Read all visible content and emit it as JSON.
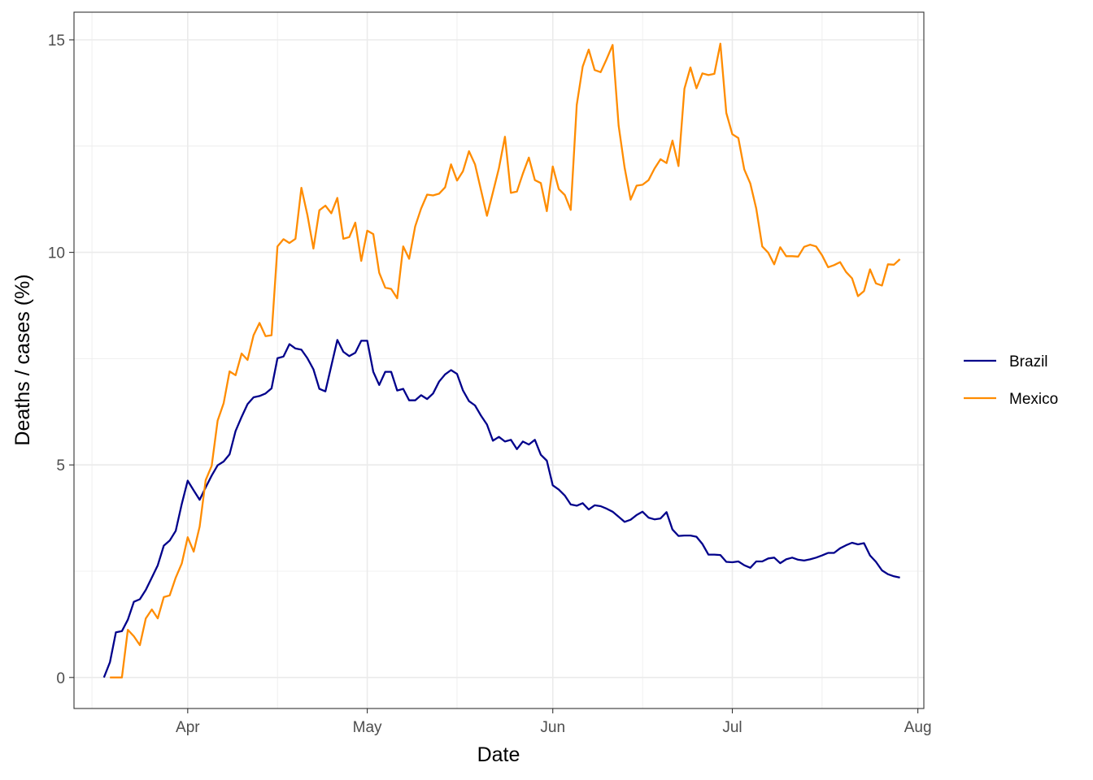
{
  "chart_data": {
    "type": "line",
    "xlabel": "Date",
    "ylabel": "Deaths / cases (%)",
    "xlim": [
      "2020-03-13",
      "2020-08-02"
    ],
    "ylim": [
      -0.73,
      15.65
    ],
    "x_ticks": [
      {
        "date": "2020-04-01",
        "label": "Apr"
      },
      {
        "date": "2020-05-01",
        "label": "May"
      },
      {
        "date": "2020-06-01",
        "label": "Jun"
      },
      {
        "date": "2020-07-01",
        "label": "Jul"
      },
      {
        "date": "2020-08-01",
        "label": "Aug"
      }
    ],
    "x_minor_ticks": [
      "2020-03-16",
      "2020-04-16",
      "2020-05-16",
      "2020-06-16",
      "2020-07-16"
    ],
    "y_ticks": [
      {
        "value": 0,
        "label": "0"
      },
      {
        "value": 5,
        "label": "5"
      },
      {
        "value": 10,
        "label": "10"
      },
      {
        "value": 15,
        "label": "15"
      }
    ],
    "y_minor_ticks": [
      2.5,
      7.5,
      12.5
    ],
    "grid": true,
    "legend_position": "right",
    "series": [
      {
        "name": "Brazil",
        "color": "#00008b",
        "start_date": "2020-03-18",
        "values": [
          0.0,
          0.36,
          1.06,
          1.09,
          1.36,
          1.78,
          1.84,
          2.06,
          2.35,
          2.64,
          3.1,
          3.22,
          3.45,
          4.08,
          4.63,
          4.4,
          4.18,
          4.47,
          4.75,
          4.99,
          5.08,
          5.25,
          5.8,
          6.13,
          6.43,
          6.59,
          6.62,
          6.68,
          6.8,
          7.51,
          7.55,
          7.84,
          7.74,
          7.71,
          7.51,
          7.25,
          6.79,
          6.73,
          7.33,
          7.94,
          7.66,
          7.56,
          7.64,
          7.92,
          7.92,
          7.19,
          6.88,
          7.19,
          7.19,
          6.75,
          6.79,
          6.52,
          6.52,
          6.64,
          6.55,
          6.68,
          6.96,
          7.13,
          7.23,
          7.14,
          6.75,
          6.5,
          6.4,
          6.16,
          5.95,
          5.57,
          5.66,
          5.55,
          5.59,
          5.37,
          5.55,
          5.48,
          5.59,
          5.24,
          5.1,
          4.52,
          4.42,
          4.28,
          4.07,
          4.04,
          4.1,
          3.95,
          4.05,
          4.03,
          3.97,
          3.9,
          3.78,
          3.66,
          3.71,
          3.82,
          3.9,
          3.76,
          3.72,
          3.74,
          3.89,
          3.48,
          3.33,
          3.34,
          3.34,
          3.31,
          3.14,
          2.89,
          2.89,
          2.88,
          2.72,
          2.71,
          2.73,
          2.64,
          2.58,
          2.73,
          2.73,
          2.8,
          2.82,
          2.69,
          2.78,
          2.82,
          2.77,
          2.75,
          2.78,
          2.82,
          2.87,
          2.93,
          2.93,
          3.04,
          3.11,
          3.17,
          3.13,
          3.16,
          2.87,
          2.72,
          2.52,
          2.43,
          2.38,
          2.35
        ]
      },
      {
        "name": "Mexico",
        "color": "#ff8c00",
        "start_date": "2020-03-19",
        "values": [
          0.0,
          0.0,
          0.0,
          1.12,
          0.97,
          0.76,
          1.39,
          1.6,
          1.39,
          1.89,
          1.93,
          2.35,
          2.68,
          3.3,
          2.96,
          3.55,
          4.64,
          4.98,
          6.04,
          6.45,
          7.2,
          7.11,
          7.62,
          7.47,
          8.05,
          8.34,
          8.03,
          8.05,
          10.14,
          10.31,
          10.22,
          10.32,
          11.52,
          10.88,
          10.09,
          10.99,
          11.1,
          10.92,
          11.28,
          10.32,
          10.36,
          10.7,
          9.8,
          10.51,
          10.43,
          9.52,
          9.17,
          9.14,
          8.92,
          10.14,
          9.85,
          10.61,
          11.03,
          11.36,
          11.34,
          11.38,
          11.53,
          12.07,
          11.69,
          11.91,
          12.38,
          12.07,
          11.47,
          10.86,
          11.41,
          11.98,
          12.72,
          11.4,
          11.43,
          11.85,
          12.23,
          11.7,
          11.63,
          10.97,
          12.02,
          11.49,
          11.35,
          11.0,
          13.47,
          14.37,
          14.77,
          14.29,
          14.24,
          14.55,
          14.88,
          12.98,
          12.0,
          11.24,
          11.57,
          11.59,
          11.7,
          11.97,
          12.19,
          12.1,
          12.63,
          12.03,
          13.85,
          14.35,
          13.86,
          14.21,
          14.17,
          14.2,
          14.91,
          13.28,
          12.78,
          12.69,
          11.95,
          11.62,
          11.03,
          10.14,
          9.99,
          9.72,
          10.12,
          9.91,
          9.91,
          9.9,
          10.13,
          10.18,
          10.14,
          9.93,
          9.65,
          9.7,
          9.77,
          9.54,
          9.39,
          8.97,
          9.09,
          9.6,
          9.27,
          9.22,
          9.72,
          9.71,
          9.84
        ]
      }
    ]
  }
}
